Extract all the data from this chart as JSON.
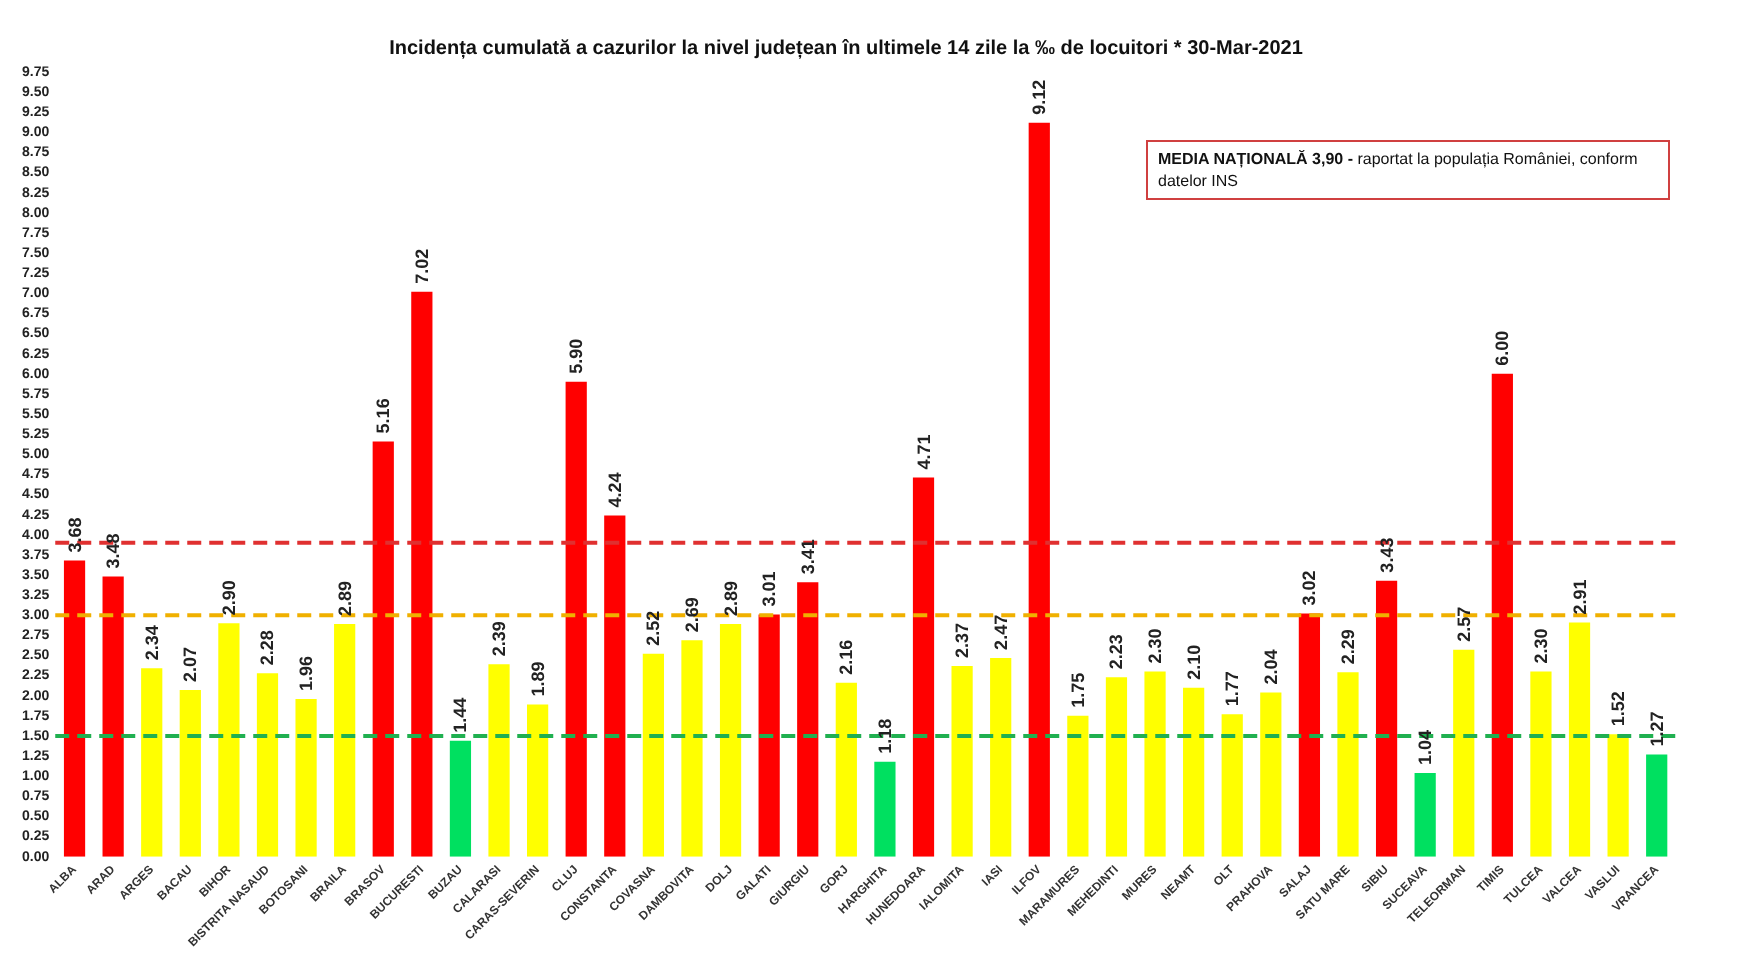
{
  "chart_data": {
    "type": "bar",
    "title": "Incidența cumulată a cazurilor la nivel județean în ultimele 14 zile la ‰ de locuitori * 30-Mar-2021",
    "categories": [
      "ALBA",
      "ARAD",
      "ARGES",
      "BACAU",
      "BIHOR",
      "BISTRITA NASAUD",
      "BOTOSANI",
      "BRAILA",
      "BRASOV",
      "BUCURESTI",
      "BUZAU",
      "CALARASI",
      "CARAS-SEVERIN",
      "CLUJ",
      "CONSTANTA",
      "COVASNA",
      "DAMBOVITA",
      "DOLJ",
      "GALATI",
      "GIURGIU",
      "GORJ",
      "HARGHITA",
      "HUNEDOARA",
      "IALOMITA",
      "IASI",
      "ILFOV",
      "MARAMURES",
      "MEHEDINTI",
      "MURES",
      "NEAMT",
      "OLT",
      "PRAHOVA",
      "SALAJ",
      "SATU MARE",
      "SIBIU",
      "SUCEAVA",
      "TELEORMAN",
      "TIMIS",
      "TULCEA",
      "VALCEA",
      "VASLUI",
      "VRANCEA"
    ],
    "values": [
      3.68,
      3.48,
      2.34,
      2.07,
      2.9,
      2.28,
      1.96,
      2.89,
      5.16,
      7.02,
      1.44,
      2.39,
      1.89,
      5.9,
      4.24,
      2.52,
      2.69,
      2.89,
      3.01,
      3.41,
      2.16,
      1.18,
      4.71,
      2.37,
      2.47,
      9.12,
      1.75,
      2.23,
      2.3,
      2.1,
      1.77,
      2.04,
      3.02,
      2.29,
      3.43,
      1.04,
      2.57,
      6.0,
      2.3,
      2.91,
      1.52,
      1.27
    ],
    "value_labels": [
      "3.68",
      "3.48",
      "2.34",
      "2.07",
      "2.90",
      "2.28",
      "1.96",
      "2.89",
      "5.16",
      "7.02",
      "1.44",
      "2.39",
      "1.89",
      "5.90",
      "4.24",
      "2.52",
      "2.69",
      "2.89",
      "3.01",
      "3.41",
      "2.16",
      "1.18",
      "4.71",
      "2.37",
      "2.47",
      "9.12",
      "1.75",
      "2.23",
      "2.30",
      "2.10",
      "1.77",
      "2.04",
      "3.02",
      "2.29",
      "3.43",
      "1.04",
      "2.57",
      "6.00",
      "2.30",
      "2.91",
      "1.52",
      "1.27"
    ],
    "colors": [
      "#ff0000",
      "#ff0000",
      "#ffff00",
      "#ffff00",
      "#ffff00",
      "#ffff00",
      "#ffff00",
      "#ffff00",
      "#ff0000",
      "#ff0000",
      "#00e060",
      "#ffff00",
      "#ffff00",
      "#ff0000",
      "#ff0000",
      "#ffff00",
      "#ffff00",
      "#ffff00",
      "#ff0000",
      "#ff0000",
      "#ffff00",
      "#00e060",
      "#ff0000",
      "#ffff00",
      "#ffff00",
      "#ff0000",
      "#ffff00",
      "#ffff00",
      "#ffff00",
      "#ffff00",
      "#ffff00",
      "#ffff00",
      "#ff0000",
      "#ffff00",
      "#ff0000",
      "#00e060",
      "#ffff00",
      "#ff0000",
      "#ffff00",
      "#ffff00",
      "#ffff00",
      "#00e060"
    ],
    "ylim": [
      0,
      9.75
    ],
    "yticks": [
      {
        "value": 0,
        "label": "0.00"
      },
      {
        "value": 0.25,
        "label": "0.25"
      },
      {
        "value": 0.5,
        "label": "0.50"
      },
      {
        "value": 0.75,
        "label": "0.75"
      },
      {
        "value": 1,
        "label": "1.00"
      },
      {
        "value": 1.25,
        "label": "1.25"
      },
      {
        "value": 1.5,
        "label": "1.50"
      },
      {
        "value": 1.75,
        "label": "1.75"
      },
      {
        "value": 2,
        "label": "2.00"
      },
      {
        "value": 2.25,
        "label": "2.25"
      },
      {
        "value": 2.5,
        "label": "2.50"
      },
      {
        "value": 2.75,
        "label": "2.75"
      },
      {
        "value": 3,
        "label": "3.00"
      },
      {
        "value": 3.25,
        "label": "3.25"
      },
      {
        "value": 3.5,
        "label": "3.50"
      },
      {
        "value": 3.75,
        "label": "3.75"
      },
      {
        "value": 4,
        "label": "4.00"
      },
      {
        "value": 4.25,
        "label": "4.25"
      },
      {
        "value": 4.5,
        "label": "4.50"
      },
      {
        "value": 4.75,
        "label": "4.75"
      },
      {
        "value": 5,
        "label": "5.00"
      },
      {
        "value": 5.25,
        "label": "5.25"
      },
      {
        "value": 5.5,
        "label": "5.50"
      },
      {
        "value": 5.75,
        "label": "5.75"
      },
      {
        "value": 6,
        "label": "6.00"
      },
      {
        "value": 6.25,
        "label": "6.25"
      },
      {
        "value": 6.5,
        "label": "6.50"
      },
      {
        "value": 6.75,
        "label": "6.75"
      },
      {
        "value": 7,
        "label": "7.00"
      },
      {
        "value": 7.25,
        "label": "7.25"
      },
      {
        "value": 7.5,
        "label": "7.50"
      },
      {
        "value": 7.75,
        "label": "7.75"
      },
      {
        "value": 8,
        "label": "8.00"
      },
      {
        "value": 8.25,
        "label": "8.25"
      },
      {
        "value": 8.5,
        "label": "8.50"
      },
      {
        "value": 8.75,
        "label": "8.75"
      },
      {
        "value": 9,
        "label": "9.00"
      },
      {
        "value": 9.25,
        "label": "9.25"
      },
      {
        "value": 9.5,
        "label": "9.50"
      },
      {
        "value": 9.75,
        "label": "9.75"
      }
    ],
    "ref_lines": [
      {
        "axis": "y",
        "value": 3.9,
        "color": "#e03030",
        "line_style": "dashed"
      },
      {
        "axis": "y",
        "value": 3.0,
        "color": "#f0b000",
        "line_style": "dashed"
      },
      {
        "axis": "y",
        "value": 1.5,
        "color": "#20b050",
        "line_style": "dashed"
      }
    ],
    "annotations": [
      "MEDIA NAȚIONALĂ 3,90 -",
      "raportat la populația României, conform datelor INS"
    ],
    "grid": false,
    "legend": false
  }
}
